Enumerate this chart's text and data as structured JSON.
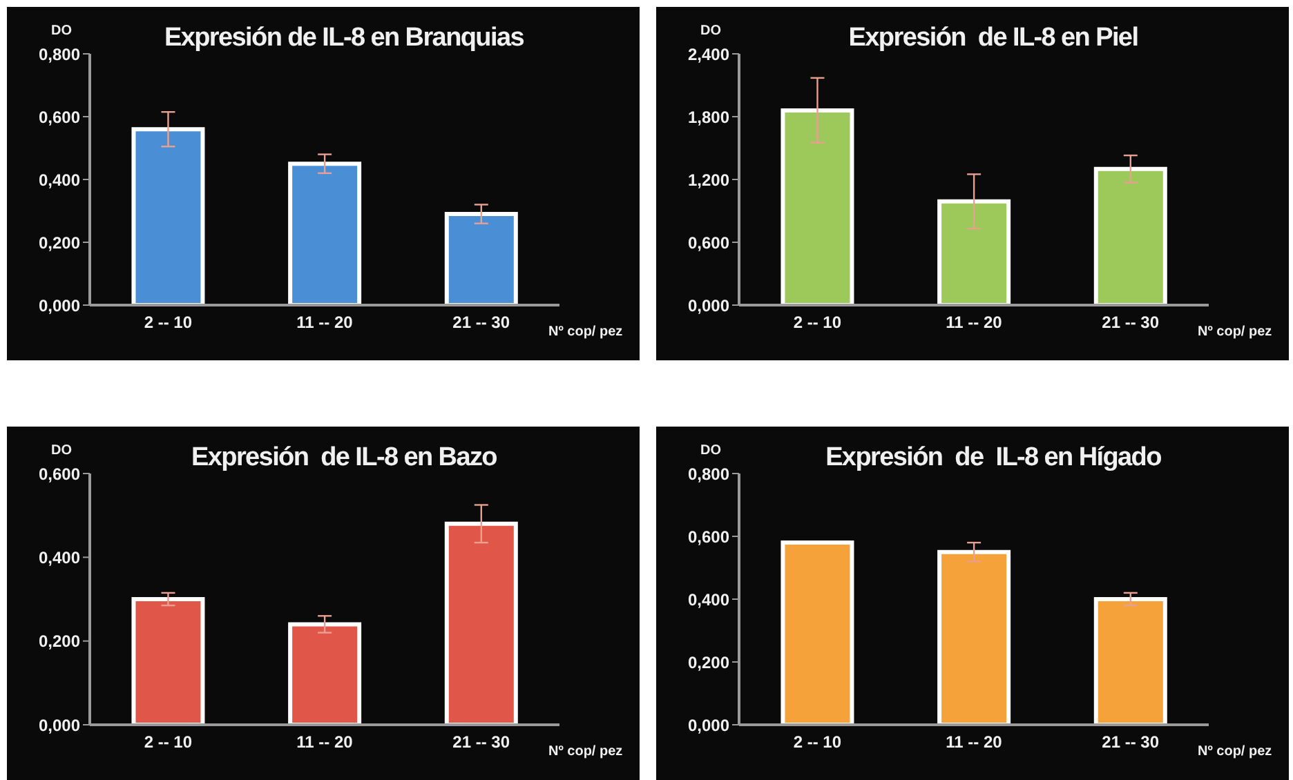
{
  "chart_data": [
    {
      "type": "bar",
      "title": "Expresión de IL-8 en Branquias",
      "ylabel": "DO",
      "xlabel": "Nº cop/ pez",
      "categories": [
        "2 -- 10",
        "11 -- 20",
        "21 -- 30"
      ],
      "values": [
        0.56,
        0.45,
        0.29
      ],
      "errors": [
        0.055,
        0.03,
        0.03
      ],
      "color": "#4a8fd6",
      "ylim": [
        0,
        0.8
      ],
      "yticks": [
        {
          "value": 0,
          "label": "0,000"
        },
        {
          "value": 0.2,
          "label": "0,200"
        },
        {
          "value": 0.4,
          "label": "0,400"
        },
        {
          "value": 0.6,
          "label": "0,600"
        },
        {
          "value": 0.8,
          "label": "0,800"
        }
      ]
    },
    {
      "type": "bar",
      "title": "Expresión  de IL-8 en Piel",
      "ylabel": "DO",
      "xlabel": "Nº cop/ pez",
      "categories": [
        "2 -- 10",
        "11 -- 20",
        "21 -- 30"
      ],
      "values": [
        1.86,
        0.99,
        1.3
      ],
      "errors": [
        0.31,
        0.26,
        0.13
      ],
      "color": "#9dc85a",
      "ylim": [
        0,
        2.4
      ],
      "yticks": [
        {
          "value": 0,
          "label": "0,000"
        },
        {
          "value": 0.6,
          "label": "0,600"
        },
        {
          "value": 1.2,
          "label": "1,200"
        },
        {
          "value": 1.8,
          "label": "1,800"
        },
        {
          "value": 2.4,
          "label": "2,400"
        }
      ]
    },
    {
      "type": "bar",
      "title": "Expresión  de IL-8 en Bazo",
      "ylabel": "DO",
      "xlabel": "Nº cop/ pez",
      "categories": [
        "2 -- 10",
        "11 -- 20",
        "21 -- 30"
      ],
      "values": [
        0.3,
        0.24,
        0.48
      ],
      "errors": [
        0.015,
        0.02,
        0.045
      ],
      "color": "#e0574a",
      "ylim": [
        0,
        0.6
      ],
      "yticks": [
        {
          "value": 0,
          "label": "0,000"
        },
        {
          "value": 0.2,
          "label": "0,200"
        },
        {
          "value": 0.4,
          "label": "0,400"
        },
        {
          "value": 0.6,
          "label": "0,600"
        }
      ]
    },
    {
      "type": "bar",
      "title": "Expresión  de  IL-8 en Hígado",
      "ylabel": "DO",
      "xlabel": "Nº cop/ pez",
      "categories": [
        "2 -- 10",
        "11 -- 20",
        "21 -- 30"
      ],
      "values": [
        0.58,
        0.55,
        0.4
      ],
      "errors": [
        null,
        0.03,
        0.02
      ],
      "color": "#f5a23a",
      "ylim": [
        0,
        0.8
      ],
      "yticks": [
        {
          "value": 0,
          "label": "0,000"
        },
        {
          "value": 0.2,
          "label": "0,200"
        },
        {
          "value": 0.4,
          "label": "0,400"
        },
        {
          "value": 0.6,
          "label": "0,600"
        },
        {
          "value": 0.8,
          "label": "0,800"
        }
      ]
    }
  ]
}
